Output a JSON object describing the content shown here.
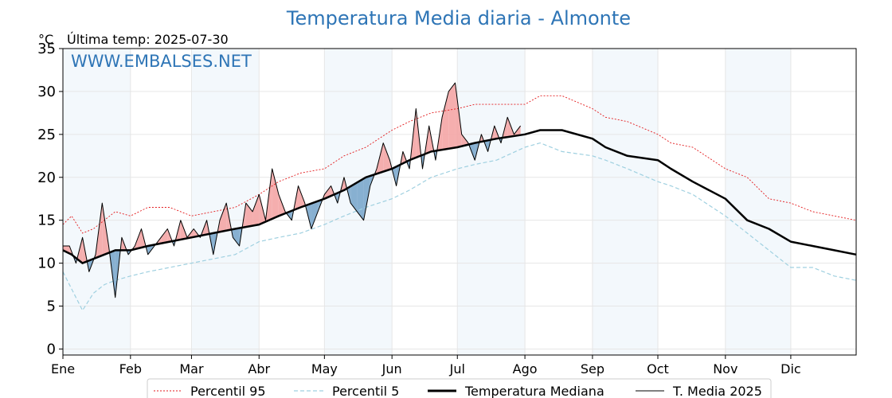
{
  "chart_data": {
    "type": "line",
    "title": "Temperatura Media diaria - Almonte",
    "unit_label": "°C",
    "subtitle": "Última temp: 2025-07-30",
    "watermark": "WWW.EMBALSES.NET",
    "xlabel": "",
    "ylabel": "",
    "xlim": [
      1,
      365
    ],
    "ylim": [
      -0.7,
      35
    ],
    "yticks": [
      0,
      5,
      10,
      15,
      20,
      25,
      30,
      35
    ],
    "month_labels": [
      "Ene",
      "Feb",
      "Mar",
      "Abr",
      "May",
      "Jun",
      "Jul",
      "Ago",
      "Sep",
      "Oct",
      "Nov",
      "Dic"
    ],
    "month_start_days": [
      1,
      32,
      60,
      91,
      121,
      152,
      182,
      213,
      244,
      274,
      305,
      335
    ],
    "grid": true,
    "shaded_months": [
      "Ene",
      "Mar",
      "May",
      "Jul",
      "Sep",
      "Nov"
    ],
    "legend_position": "bottom",
    "colors": {
      "p95": "#e31a1c",
      "p5": "#9fd0e0",
      "median": "#000000",
      "current": "#000000",
      "above_fill": "#f4a5a5",
      "below_fill": "#7ba7cc",
      "title": "#2e75b6"
    },
    "series": [
      {
        "name": "Percentil 95",
        "style": "dotted red",
        "x": [
          1,
          5,
          10,
          15,
          20,
          25,
          32,
          40,
          50,
          60,
          70,
          80,
          91,
          100,
          110,
          121,
          130,
          140,
          152,
          160,
          170,
          182,
          190,
          200,
          213,
          220,
          230,
          244,
          250,
          260,
          274,
          280,
          290,
          305,
          315,
          325,
          335,
          345,
          355,
          365
        ],
        "y": [
          14.5,
          15.5,
          13.5,
          14.0,
          15.0,
          16.0,
          15.5,
          16.5,
          16.5,
          15.5,
          16.0,
          16.5,
          18.0,
          19.5,
          20.5,
          21.0,
          22.5,
          23.5,
          25.5,
          26.5,
          27.5,
          28.0,
          28.5,
          28.5,
          28.5,
          29.5,
          29.5,
          28.0,
          27.0,
          26.5,
          25.0,
          24.0,
          23.5,
          21.0,
          20.0,
          17.5,
          17.0,
          16.0,
          15.5,
          15.0
        ]
      },
      {
        "name": "Percentil 5",
        "style": "dashed light blue",
        "x": [
          1,
          5,
          10,
          15,
          20,
          25,
          32,
          40,
          50,
          60,
          70,
          80,
          91,
          100,
          110,
          121,
          130,
          140,
          152,
          160,
          170,
          182,
          190,
          200,
          213,
          220,
          230,
          244,
          250,
          260,
          274,
          280,
          290,
          305,
          315,
          325,
          335,
          345,
          355,
          365
        ],
        "y": [
          9.0,
          7.0,
          4.5,
          6.5,
          7.5,
          8.0,
          8.5,
          9.0,
          9.5,
          10.0,
          10.5,
          11.0,
          12.5,
          13.0,
          13.5,
          14.5,
          15.5,
          16.5,
          17.5,
          18.5,
          20.0,
          21.0,
          21.5,
          22.0,
          23.5,
          24.0,
          23.0,
          22.5,
          22.0,
          21.0,
          19.5,
          19.0,
          18.0,
          15.5,
          13.5,
          11.5,
          9.5,
          9.5,
          8.5,
          8.0
        ]
      },
      {
        "name": "Temperatura Mediana",
        "style": "thick black",
        "x": [
          1,
          5,
          10,
          15,
          20,
          25,
          32,
          40,
          50,
          60,
          70,
          80,
          91,
          100,
          110,
          121,
          130,
          140,
          152,
          160,
          170,
          182,
          190,
          200,
          213,
          220,
          230,
          244,
          250,
          260,
          274,
          280,
          290,
          305,
          315,
          325,
          335,
          345,
          355,
          365
        ],
        "y": [
          11.5,
          11.0,
          10.0,
          10.5,
          11.0,
          11.5,
          11.5,
          12.0,
          12.5,
          13.0,
          13.5,
          14.0,
          14.5,
          15.5,
          16.5,
          17.5,
          18.5,
          20.0,
          21.0,
          22.0,
          23.0,
          23.5,
          24.0,
          24.5,
          25.0,
          25.5,
          25.5,
          24.5,
          23.5,
          22.5,
          22.0,
          21.0,
          19.5,
          17.5,
          15.0,
          14.0,
          12.5,
          12.0,
          11.5,
          11.0
        ]
      },
      {
        "name": "T. Media 2025",
        "style": "thin black",
        "x": [
          1,
          4,
          7,
          10,
          13,
          16,
          19,
          22,
          25,
          28,
          31,
          34,
          37,
          40,
          43,
          46,
          49,
          52,
          55,
          58,
          61,
          64,
          67,
          70,
          73,
          76,
          79,
          82,
          85,
          88,
          91,
          94,
          97,
          100,
          103,
          106,
          109,
          112,
          115,
          118,
          121,
          124,
          127,
          130,
          133,
          136,
          139,
          142,
          145,
          148,
          151,
          154,
          157,
          160,
          163,
          166,
          169,
          172,
          175,
          178,
          181,
          184,
          187,
          190,
          193,
          196,
          199,
          202,
          205,
          208,
          211
        ],
        "y": [
          12,
          12,
          10,
          13,
          9,
          11,
          17,
          12,
          6,
          13,
          11,
          12,
          14,
          11,
          12,
          13,
          14,
          12,
          15,
          13,
          14,
          13,
          15,
          11,
          15,
          17,
          13,
          12,
          17,
          16,
          18,
          15,
          21,
          18,
          16,
          15,
          19,
          17,
          14,
          16,
          18,
          19,
          17,
          20,
          17,
          16,
          15,
          19,
          21,
          24,
          22,
          19,
          23,
          21,
          28,
          21,
          26,
          22,
          27,
          30,
          31,
          25,
          24,
          22,
          25,
          23,
          26,
          24,
          27,
          25,
          26
        ]
      }
    ]
  }
}
